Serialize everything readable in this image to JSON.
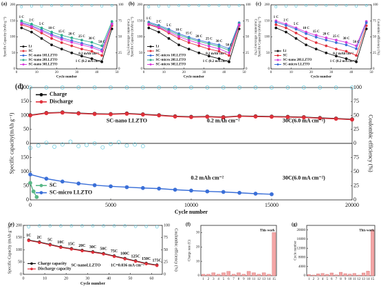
{
  "chart_data": [
    {
      "type": "line",
      "label": "(a)",
      "xlabel": "Cycle number",
      "ylabel": "Specific Capacity (mAh g⁻¹)",
      "y2label": "Coulombic efficiency (%)",
      "xlim": [
        0,
        50
      ],
      "xticks": [
        0,
        10,
        20,
        30,
        40,
        50
      ],
      "ylim": [
        0,
        200
      ],
      "yticks": [
        0,
        50,
        100,
        150,
        200
      ],
      "y2lim": [
        0,
        100
      ],
      "y2ticks": [
        0,
        25,
        50,
        75,
        100
      ],
      "legend": "lower left",
      "x": [
        2.5,
        7.5,
        12.5,
        17.5,
        22.5,
        27.5,
        32.5,
        37.5,
        42.5,
        47.5
      ],
      "rate_labels": [
        "1 C",
        "2 C",
        "5 C",
        "10 C",
        "15 C",
        "20 C",
        "25 C",
        "30 C",
        "50 C"
      ],
      "annotations": [
        "0.2 mAh cm⁻²",
        "1 C (0.2 mA cm⁻²)"
      ],
      "series": [
        {
          "name": "Li",
          "color": "#111111",
          "values": [
            128,
            115,
            95,
            75,
            62,
            50,
            40,
            32,
            22,
            125
          ]
        },
        {
          "name": "SC",
          "color": "#e0303a",
          "values": [
            138,
            128,
            112,
            95,
            82,
            72,
            62,
            55,
            42,
            135
          ]
        },
        {
          "name": "SC-nano 10LLZTO",
          "color": "#3a6fd8",
          "values": [
            145,
            135,
            122,
            108,
            97,
            88,
            80,
            72,
            60,
            142
          ]
        },
        {
          "name": "SC-nano 20LLZTO",
          "color": "#2fae8c",
          "values": [
            150,
            140,
            128,
            115,
            105,
            97,
            90,
            83,
            72,
            148
          ]
        },
        {
          "name": "SC-nano 30LLZTO",
          "color": "#d63adb",
          "values": [
            142,
            132,
            118,
            104,
            92,
            83,
            75,
            67,
            55,
            140
          ]
        },
        {
          "color": "#4fc3d9",
          "axis": "y2",
          "mode": "markers",
          "values": [
            97,
            98,
            98,
            99,
            99,
            99,
            99,
            99,
            98,
            99
          ]
        }
      ]
    },
    {
      "type": "line",
      "label": "(b)",
      "xlabel": "Cycle number",
      "ylabel": "Specific Capacity (mAh g⁻¹)",
      "y2label": "Coulombic efficiency (%)",
      "xlim": [
        0,
        50
      ],
      "xticks": [
        0,
        10,
        20,
        30,
        40,
        50
      ],
      "ylim": [
        0,
        200
      ],
      "yticks": [
        0,
        50,
        100,
        150,
        200
      ],
      "y2lim": [
        0,
        100
      ],
      "y2ticks": [
        0,
        25,
        50,
        75,
        100
      ],
      "legend": "lower left",
      "x": [
        2.5,
        7.5,
        12.5,
        17.5,
        22.5,
        27.5,
        32.5,
        37.5,
        42.5,
        47.5
      ],
      "rate_labels": [
        "1 C",
        "2 C",
        "5 C",
        "10 C",
        "15 C",
        "20 C",
        "25 C",
        "30 C",
        "50 C"
      ],
      "annotations": [
        "0.2 mAh cm⁻²",
        "1 C (0.2 mA cm⁻²)"
      ],
      "series": [
        {
          "name": "Li",
          "color": "#111111",
          "values": [
            128,
            115,
            95,
            75,
            62,
            50,
            40,
            32,
            22,
            125
          ]
        },
        {
          "name": "SC",
          "color": "#e0303a",
          "values": [
            138,
            128,
            112,
            95,
            82,
            72,
            62,
            55,
            42,
            135
          ]
        },
        {
          "name": "SC-micro 10LLZTO",
          "color": "#3a6fd8",
          "values": [
            146,
            136,
            124,
            110,
            99,
            90,
            82,
            75,
            63,
            144
          ]
        },
        {
          "name": "SC-micro 20LLZTO",
          "color": "#2fae8c",
          "values": [
            143,
            133,
            120,
            106,
            95,
            86,
            78,
            70,
            58,
            141
          ]
        },
        {
          "name": "SC-micro 30LLZTO",
          "color": "#d63adb",
          "values": [
            140,
            130,
            116,
            101,
            89,
            80,
            71,
            63,
            50,
            138
          ]
        },
        {
          "color": "#4fc3d9",
          "axis": "y2",
          "mode": "markers",
          "values": [
            97,
            98,
            98,
            99,
            99,
            99,
            99,
            99,
            98,
            99
          ]
        }
      ]
    },
    {
      "type": "line",
      "label": "(c)",
      "xlabel": "Cycle number",
      "ylabel": "Specific Capacity (mAh g⁻¹)",
      "y2label": "Coulombic efficiency (%)",
      "xlim": [
        0,
        50
      ],
      "xticks": [
        0,
        10,
        20,
        30,
        40,
        50
      ],
      "ylim": [
        0,
        200
      ],
      "yticks": [
        0,
        50,
        100,
        150,
        200
      ],
      "y2lim": [
        0,
        100
      ],
      "y2ticks": [
        0,
        25,
        50,
        75,
        100
      ],
      "legend": "lower left",
      "x": [
        2.5,
        7.5,
        12.5,
        17.5,
        22.5,
        27.5,
        32.5,
        37.5,
        42.5,
        47.5
      ],
      "rate_labels": [
        "1 C",
        "2 C",
        "5 C",
        "10 C",
        "15 C",
        "20 C",
        "25 C",
        "30 C",
        "50 C"
      ],
      "annotations": [
        "0.2 mAh cm⁻²",
        "1 C (0.2 mA cm⁻²)"
      ],
      "series": [
        {
          "name": "Li",
          "color": "#111111",
          "values": [
            128,
            115,
            95,
            75,
            62,
            50,
            40,
            32,
            22,
            125
          ]
        },
        {
          "name": "SC",
          "color": "#e0303a",
          "values": [
            138,
            128,
            112,
            95,
            82,
            72,
            62,
            55,
            42,
            135
          ]
        },
        {
          "name": "SC-nano 20LLZTO",
          "color": "#d63adb",
          "values": [
            150,
            140,
            128,
            115,
            105,
            97,
            90,
            83,
            72,
            148
          ]
        },
        {
          "name": "SC-micro LLZTO",
          "color": "#3a6fd8",
          "values": [
            146,
            136,
            124,
            110,
            99,
            90,
            82,
            75,
            63,
            144
          ]
        },
        {
          "color": "#4fc3d9",
          "axis": "y2",
          "mode": "markers",
          "values": [
            97,
            98,
            98,
            99,
            99,
            99,
            99,
            99,
            98,
            99
          ]
        }
      ]
    },
    {
      "type": "line",
      "label": "(d)",
      "ylabel": "Specific capacity(mAh g⁻¹)",
      "y2label": "Coulombic efficiency (%)",
      "xlim": [
        0,
        20000
      ],
      "ylim": [
        0,
        200
      ],
      "yticks": [
        0,
        50,
        100,
        150,
        200
      ],
      "y2lim": [
        0,
        100
      ],
      "y2ticks": [
        0,
        25,
        50,
        75,
        100
      ],
      "legend": "upper left",
      "x": [
        0,
        1000,
        2000,
        3000,
        4000,
        5000,
        6000,
        7000,
        8000,
        9000,
        10000,
        11000,
        12000,
        13000,
        14000,
        15000,
        16000,
        17000,
        18000,
        19000,
        20000
      ],
      "annotations": [
        "SC-nano LLZTO",
        "0.2 mAh cm⁻²",
        "30C(6.0 mA cm⁻²)"
      ],
      "series": [
        {
          "name": "Charge",
          "color": "#111111",
          "values": [
            101,
            109,
            111,
            108,
            106,
            105,
            107,
            104,
            101,
            97,
            95,
            96,
            94,
            98,
            97,
            96,
            95,
            94,
            91,
            89,
            86
          ]
        },
        {
          "name": "Discharge",
          "color": "#e0303a",
          "values": [
            100,
            108,
            110,
            107,
            105,
            104,
            106,
            103,
            100,
            96,
            94,
            95,
            93,
            97,
            96,
            95,
            94,
            93,
            90,
            88,
            85
          ]
        },
        {
          "color": "#4fc3d9",
          "axis": "y2",
          "mode": "markers",
          "values": [
            100,
            100,
            100,
            100,
            100,
            100,
            100,
            100,
            100,
            100,
            100,
            100,
            100,
            100,
            100,
            100,
            100,
            100,
            100,
            100,
            100
          ]
        }
      ]
    },
    {
      "type": "line",
      "xlabel": "Cycle number",
      "xlim": [
        0,
        20000
      ],
      "xticks": [
        0,
        5000,
        10000,
        15000,
        20000
      ],
      "ylim": [
        0,
        200
      ],
      "yticks": [
        0,
        50,
        100,
        150
      ],
      "y2lim": [
        0,
        100
      ],
      "y2ticks": [
        0,
        25,
        50,
        75
      ],
      "legend": "lower left",
      "annotations": [
        "0.2 mAh cm⁻²",
        "30C(6.0 mA cm⁻²)"
      ],
      "series": [
        {
          "name": "SC",
          "color": "#59b887",
          "x": [
            0,
            200,
            400
          ],
          "values": [
            60,
            30,
            10
          ]
        },
        {
          "name": "SC-micro LLZTO",
          "color": "#3a6fd8",
          "x": [
            0,
            1000,
            2000,
            3000,
            4000,
            5000,
            6000,
            7000,
            8000,
            9000,
            10000,
            11000,
            12000,
            13000,
            14000,
            15000
          ],
          "values": [
            90,
            75,
            65,
            58,
            52,
            48,
            45,
            42,
            40,
            36,
            33,
            30,
            28,
            25,
            22,
            20
          ]
        },
        {
          "color": "#4fc3d9",
          "axis": "y2",
          "mode": "markers",
          "x": [
            0,
            500,
            1000,
            1500,
            2000,
            2500,
            3000,
            3500,
            4000,
            4500,
            5000,
            5500,
            6000,
            6500,
            7000
          ],
          "values": [
            92,
            96,
            101,
            94,
            98,
            103,
            95,
            97,
            100,
            93,
            99,
            102,
            96,
            98,
            95
          ]
        }
      ]
    },
    {
      "type": "line",
      "label": "(e)",
      "xlabel": "Cycle number",
      "ylabel": "Specific Capacity (mAh g⁻¹)",
      "y2label": "Coulombic efficiency (%)",
      "xlim": [
        0,
        65
      ],
      "xticks": [
        0,
        10,
        20,
        30,
        40,
        50,
        60
      ],
      "ylim": [
        0,
        200
      ],
      "yticks": [
        0,
        50,
        100,
        150,
        200
      ],
      "y2lim": [
        0,
        100
      ],
      "y2ticks": [
        0,
        25,
        50,
        75,
        100
      ],
      "legend": "lower left",
      "x": [
        2.5,
        7.5,
        12.5,
        17.5,
        22.5,
        27.5,
        32.5,
        37.5,
        42.5,
        47.5,
        52.5,
        57.5,
        62.5
      ],
      "rate_labels": [
        "1C",
        "2C",
        "5C",
        "10C",
        "15C",
        "20C",
        "30C",
        "50C",
        "75C",
        "100C",
        "125C",
        "150C",
        "175C"
      ],
      "annotations": [
        "SC-nanoLLZTO",
        "1C=0.036 mA cm⁻²"
      ],
      "series": [
        {
          "name": "Charge capacity",
          "color": "#111111",
          "values": [
            140,
            132,
            122,
            112,
            105,
            98,
            92,
            85,
            75,
            65,
            55,
            45,
            38
          ]
        },
        {
          "name": "Discharge capacity",
          "color": "#e0303a",
          "values": [
            138,
            130,
            120,
            110,
            103,
            96,
            90,
            83,
            73,
            63,
            53,
            43,
            36
          ]
        },
        {
          "color": "#4fc3d9",
          "axis": "y2",
          "mode": "markers",
          "values": [
            97,
            99,
            99,
            99,
            99,
            99,
            99,
            99,
            99,
            99,
            98,
            98,
            97
          ]
        }
      ]
    },
    {
      "type": "bar",
      "label": "(f)",
      "ylabel": "Charge rate (C)",
      "color": "#f4a6a6",
      "categories": [
        "1",
        "2",
        "3",
        "4",
        "5",
        "6",
        "7",
        "8",
        "9",
        "10",
        "11",
        "12",
        "13",
        "14",
        "15"
      ],
      "values": [
        1,
        1,
        2,
        1,
        2,
        3,
        1,
        2,
        1,
        3,
        2,
        1,
        2,
        1,
        30
      ],
      "ylim": [
        0,
        35
      ],
      "yticks": [
        0,
        10,
        20,
        30
      ],
      "annotations": [
        "This work"
      ]
    },
    {
      "type": "bar",
      "label": "(g)",
      "ylabel": "Cycle number",
      "color": "#f4a6a6",
      "categories": [
        "1",
        "2",
        "3",
        "4",
        "5",
        "6",
        "7",
        "8",
        "9",
        "10",
        "11",
        "12",
        "13",
        "14",
        "15"
      ],
      "values": [
        500,
        300,
        800,
        1000,
        600,
        1200,
        400,
        1500,
        900,
        700,
        1000,
        300,
        1200,
        2000,
        20000
      ],
      "ylim": [
        0,
        22000
      ],
      "yticks": [
        0,
        4000,
        8000,
        12000,
        16000,
        20000
      ],
      "annotations": [
        "This work"
      ]
    }
  ]
}
